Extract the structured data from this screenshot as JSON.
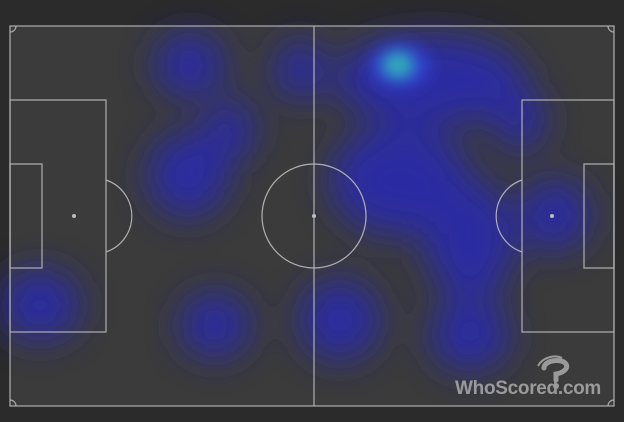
{
  "heatmap": {
    "background_color": "#3a3a3a",
    "line_color": "#bdbdbd",
    "hot_color": "#2fd7a6",
    "cool_color": "#3b3bd6",
    "watermark_text": "WhoScored.com",
    "watermark_icon": "whoscored-logo-icon"
  }
}
